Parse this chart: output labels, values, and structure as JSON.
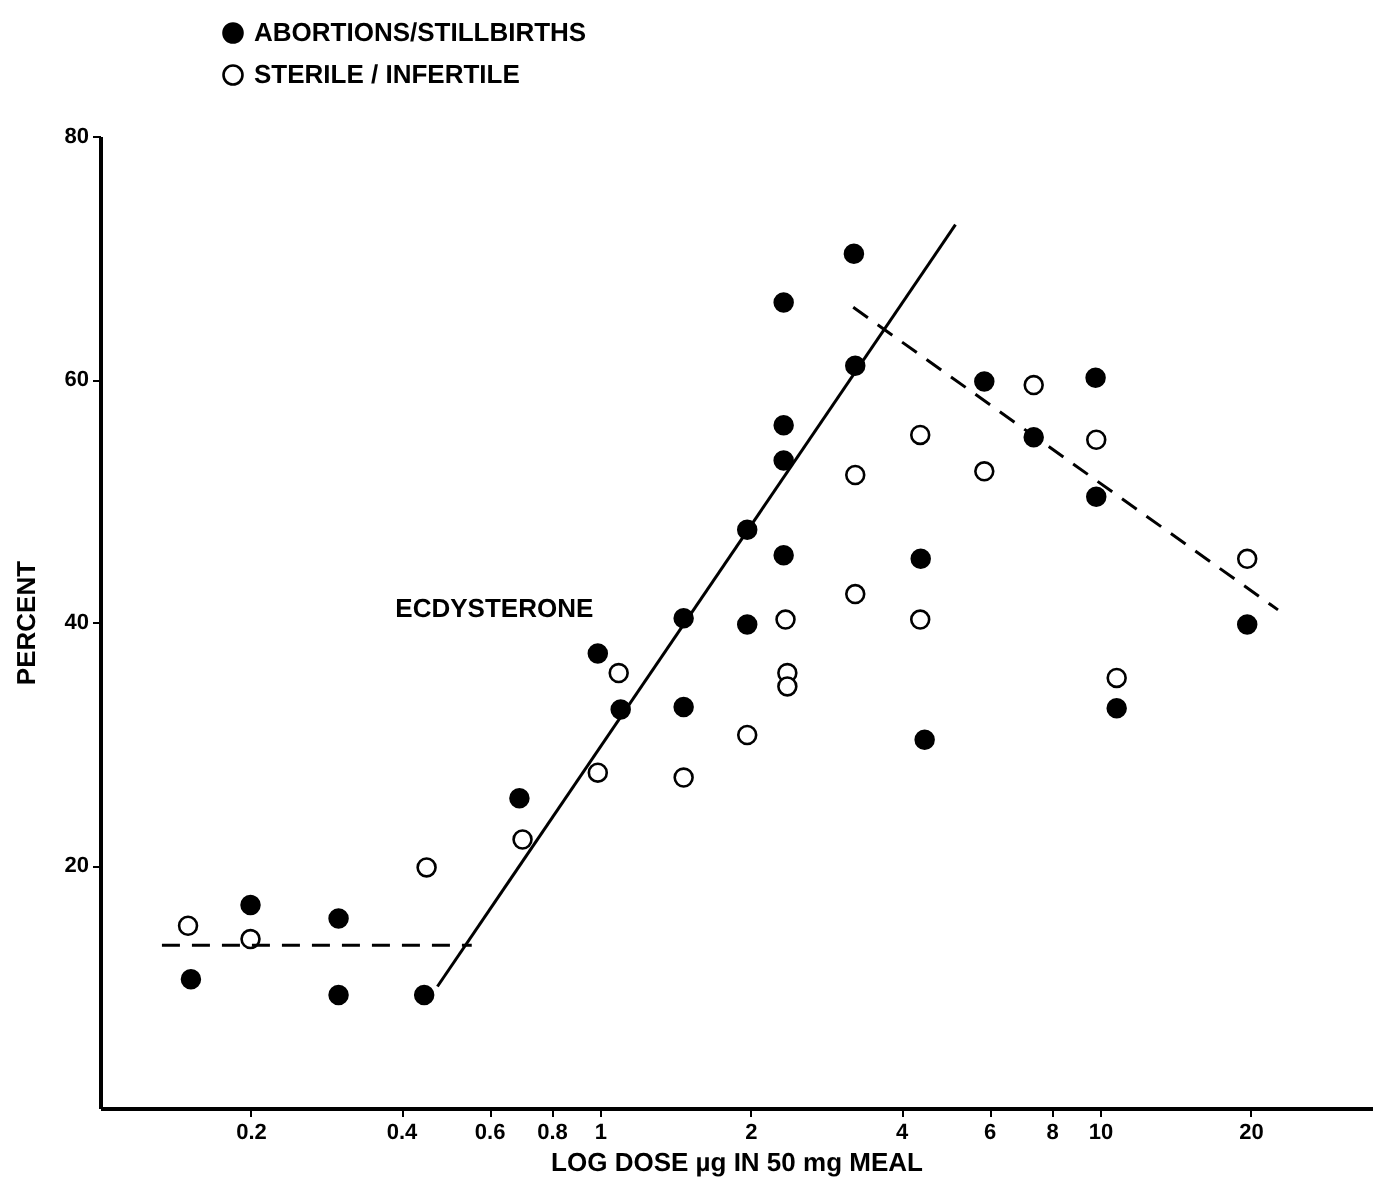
{
  "chart_data": {
    "type": "scatter",
    "xlabel": "LOG DOSE µg IN 50 mg MEAL",
    "ylabel": "PERCENT",
    "annotations": [
      "ECDYSTERONE"
    ],
    "log": "x",
    "xlim": [
      0.1,
      35
    ],
    "xticks": [
      0.2,
      0.4,
      0.6,
      0.8,
      1,
      2,
      4,
      6,
      8,
      10,
      20
    ],
    "ylim": [
      0,
      80
    ],
    "yticks": [
      20,
      40,
      60,
      80
    ],
    "legend": "top left",
    "marker": "circle",
    "series": [
      {
        "name": "ABORTIONS/STILLBIRTHS",
        "color": "#000000",
        "x": [
          0.152,
          0.2,
          0.3,
          0.3,
          0.445,
          0.69,
          0.99,
          1.1,
          1.47,
          1.47,
          1.97,
          1.97,
          2.33,
          2.33,
          2.33,
          2.33,
          3.22,
          3.24,
          4.38,
          4.46,
          5.87,
          7.37,
          9.8,
          9.83,
          10.8,
          19.7
        ],
        "values": [
          10.6,
          16.7,
          15.6,
          9.3,
          9.3,
          25.5,
          37.4,
          32.8,
          40.3,
          33.0,
          47.6,
          39.8,
          66.3,
          56.2,
          53.3,
          45.5,
          70.3,
          61.1,
          45.2,
          30.3,
          59.8,
          55.2,
          60.1,
          50.3,
          32.9,
          39.8
        ]
      },
      {
        "name": "STERILE / INFERTILE",
        "color": "#ffffff",
        "x": [
          0.15,
          0.2,
          0.45,
          0.7,
          0.99,
          1.09,
          1.47,
          1.97,
          2.35,
          2.37,
          2.37,
          3.24,
          3.24,
          4.37,
          4.37,
          5.87,
          7.37,
          9.83,
          10.8,
          19.7
        ],
        "values": [
          15.0,
          13.9,
          19.8,
          22.1,
          27.6,
          35.8,
          27.2,
          30.7,
          40.2,
          35.8,
          34.7,
          52.1,
          42.3,
          55.4,
          40.2,
          52.4,
          59.5,
          55.0,
          35.4,
          45.2
        ]
      },
      {
        "type": "line",
        "color": "#000000",
        "line_style": "dashed",
        "marker": "none",
        "x": [
          0.133,
          0.554
        ],
        "values": [
          13.4,
          13.4
        ]
      },
      {
        "type": "line",
        "color": "#000000",
        "line_style": "solid",
        "marker": "none",
        "x": [
          0.473,
          5.14
        ],
        "values": [
          10.0,
          72.7
        ]
      },
      {
        "type": "line",
        "color": "#000000",
        "line_style": "dashed",
        "marker": "none",
        "x": [
          3.21,
          22.7
        ],
        "values": [
          65.9,
          41.0
        ]
      }
    ]
  }
}
